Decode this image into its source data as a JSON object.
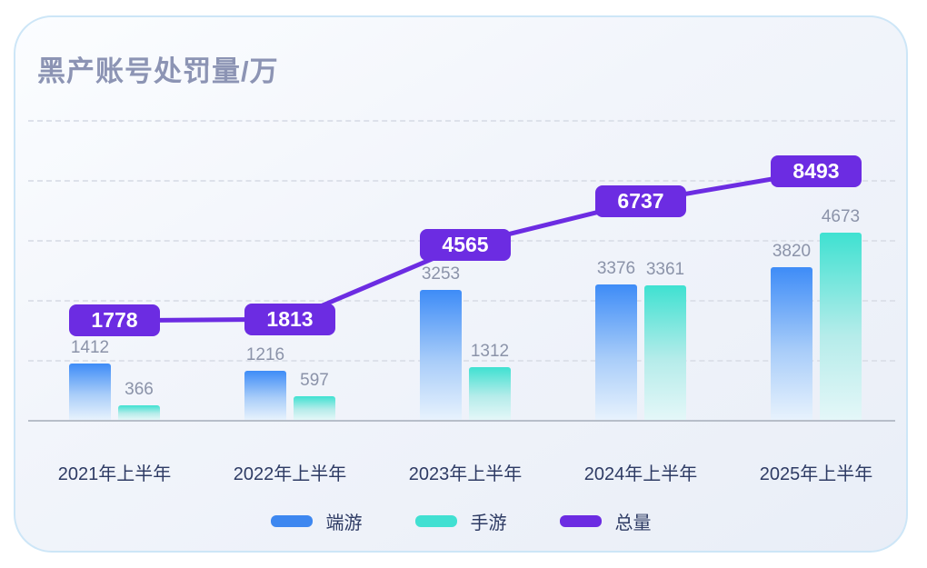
{
  "header": {
    "title": "黑产账号处罚量/万"
  },
  "colors": {
    "card_background_start": "#fbfdff",
    "card_background_end": "#e9eef7",
    "card_border": "#cde6f7",
    "title_text": "#8c94b4",
    "bar_blue_top": "#3e8cf7",
    "bar_blue_bottom": "#e7f2fd",
    "bar_teal_top": "#3fe1d1",
    "bar_teal_bottom": "#e4f7f8",
    "total_purple": "#6c2ce2",
    "value_label_text": "#8b93a9",
    "axis_label_text": "#2e3b64",
    "gridline": "#dde1ea",
    "axis_line": "#b7bec9"
  },
  "chart_data": {
    "type": "bar",
    "title": "黑产账号处罚量/万",
    "xlabel": "",
    "ylabel": "",
    "categories": [
      "2021年上半年",
      "2022年上半年",
      "2023年上半年",
      "2024年上半年",
      "2025年上半年"
    ],
    "series": [
      {
        "name": "端游",
        "type": "bar",
        "color": "#3d87f0",
        "values": [
          1412,
          1216,
          3253,
          3376,
          3820
        ]
      },
      {
        "name": "手游",
        "type": "bar",
        "color": "#41e0d2",
        "values": [
          366,
          597,
          1312,
          3361,
          4673
        ]
      },
      {
        "name": "总量",
        "type": "line",
        "color": "#6c2ce2",
        "values": [
          1778,
          1813,
          4565,
          6737,
          8493
        ]
      }
    ],
    "data_labels_shown": true,
    "legend": [
      "端游",
      "手游",
      "总量"
    ],
    "legend_position": "bottom",
    "grid": "horizontal-dashed",
    "ylim": [
      0,
      9000
    ]
  }
}
